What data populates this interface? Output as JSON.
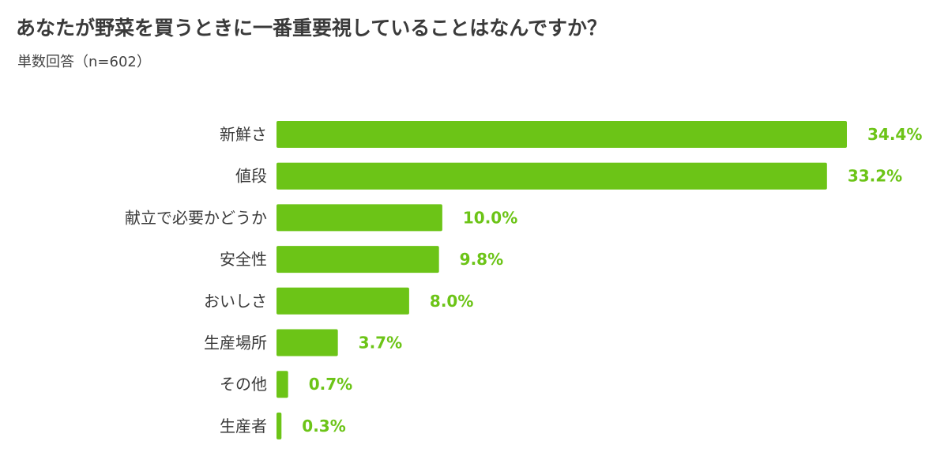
{
  "title": "あなたが野菜を買うときに一番重要視していることはなんですか？",
  "subtitle": "単数回答（n=602）",
  "colors": {
    "bar": "#6cc417",
    "value_text": "#6cc417"
  },
  "chart_data": {
    "type": "bar",
    "orientation": "horizontal",
    "categories": [
      "新鮮さ",
      "値段",
      "献立で必要かどうか",
      "安全性",
      "おいしさ",
      "生産場所",
      "その他",
      "生産者"
    ],
    "values": [
      34.4,
      33.2,
      10.0,
      9.8,
      8.0,
      3.7,
      0.7,
      0.3
    ],
    "value_labels": [
      "34.4%",
      "33.2%",
      "10.0%",
      "9.8%",
      "8.0%",
      "3.7%",
      "0.7%",
      "0.3%"
    ],
    "unit": "%",
    "xlim": [
      0,
      34.4
    ],
    "grid": false,
    "legend": "none"
  }
}
